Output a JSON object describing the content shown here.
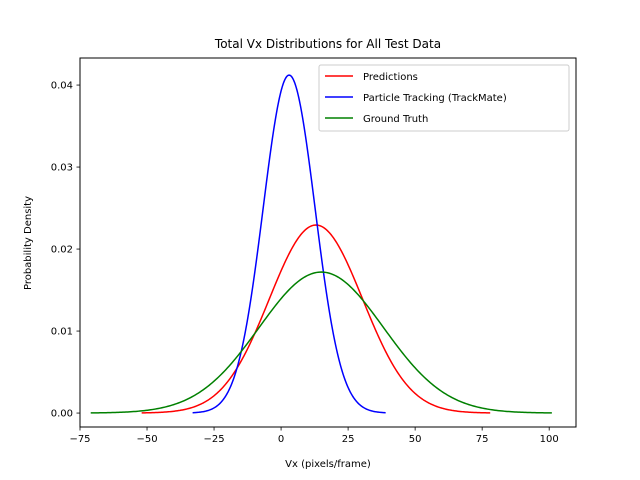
{
  "chart_data": {
    "type": "line",
    "title": "Total Vx Distributions for All Test Data",
    "xlabel": "Vx (pixels/frame)",
    "ylabel": "Probability Density",
    "xlim": [
      -75,
      110
    ],
    "ylim": [
      -0.0017,
      0.0433
    ],
    "xticks": [
      -75,
      -50,
      -25,
      0,
      25,
      50,
      75,
      100
    ],
    "yticks": [
      0.0,
      0.01,
      0.02,
      0.03,
      0.04
    ],
    "ytick_labels": [
      "0.00",
      "0.01",
      "0.02",
      "0.03",
      "0.04"
    ],
    "grid": false,
    "legend_position": "top-right",
    "series": [
      {
        "name": "Predictions",
        "color": "#ff0000",
        "mean": 13.0,
        "std": 17.4,
        "x_range": [
          -52,
          78
        ]
      },
      {
        "name": "Particle Tracking (TrackMate)",
        "color": "#0000ff",
        "mean": 3.0,
        "std": 9.68,
        "x_range": [
          -33,
          39
        ]
      },
      {
        "name": "Ground Truth",
        "color": "#008000",
        "mean": 15.0,
        "std": 23.2,
        "x_range": [
          -71,
          101
        ]
      }
    ]
  }
}
